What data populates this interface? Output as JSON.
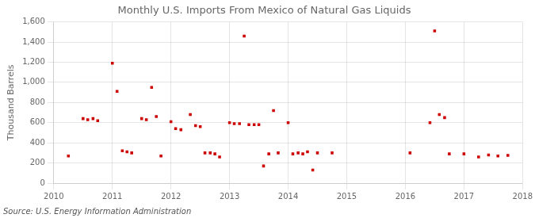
{
  "chart_data": {
    "type": "scatter",
    "title": "Monthly U.S. Imports From Mexico of Natural Gas Liquids",
    "ylabel": "Thousand Barrels",
    "source": "Source: U.S. Energy Information Administration",
    "color": "#cc0000",
    "marker": "square",
    "grid": true,
    "xlim": [
      2010.0,
      2018.0
    ],
    "ylim": [
      0,
      1600
    ],
    "xticks": [
      2010,
      2011,
      2012,
      2013,
      2014,
      2015,
      2016,
      2017,
      2018
    ],
    "yticks": [
      0,
      200,
      400,
      600,
      800,
      {
        "value": 1000,
        "label": "1,000"
      },
      {
        "value": 1200,
        "label": "1,200"
      },
      {
        "value": 1400,
        "label": "1,400"
      },
      {
        "value": 1600,
        "label": "1,600"
      }
    ],
    "x": [
      2010.25,
      2010.5,
      2010.58,
      2010.67,
      2010.75,
      2011.0,
      2011.08,
      2011.17,
      2011.25,
      2011.33,
      2011.5,
      2011.58,
      2011.67,
      2011.75,
      2011.83,
      2012.0,
      2012.08,
      2012.17,
      2012.33,
      2012.42,
      2012.5,
      2012.58,
      2012.67,
      2012.75,
      2012.83,
      2013.0,
      2013.08,
      2013.17,
      2013.25,
      2013.33,
      2013.42,
      2013.5,
      2013.58,
      2013.67,
      2013.75,
      2013.83,
      2014.0,
      2014.08,
      2014.17,
      2014.25,
      2014.33,
      2014.42,
      2014.5,
      2014.75,
      2016.08,
      2016.42,
      2016.5,
      2016.58,
      2016.67,
      2016.75,
      2017.0,
      2017.25,
      2017.42,
      2017.58,
      2017.75
    ],
    "values": [
      270,
      640,
      630,
      640,
      620,
      1190,
      910,
      320,
      310,
      300,
      640,
      630,
      950,
      660,
      270,
      610,
      540,
      530,
      680,
      570,
      560,
      300,
      300,
      290,
      260,
      600,
      590,
      590,
      1460,
      580,
      580,
      580,
      170,
      290,
      720,
      300,
      600,
      290,
      300,
      290,
      310,
      130,
      300,
      300,
      300,
      600,
      1510,
      680,
      650,
      290,
      290,
      260,
      280,
      270,
      275
    ]
  }
}
